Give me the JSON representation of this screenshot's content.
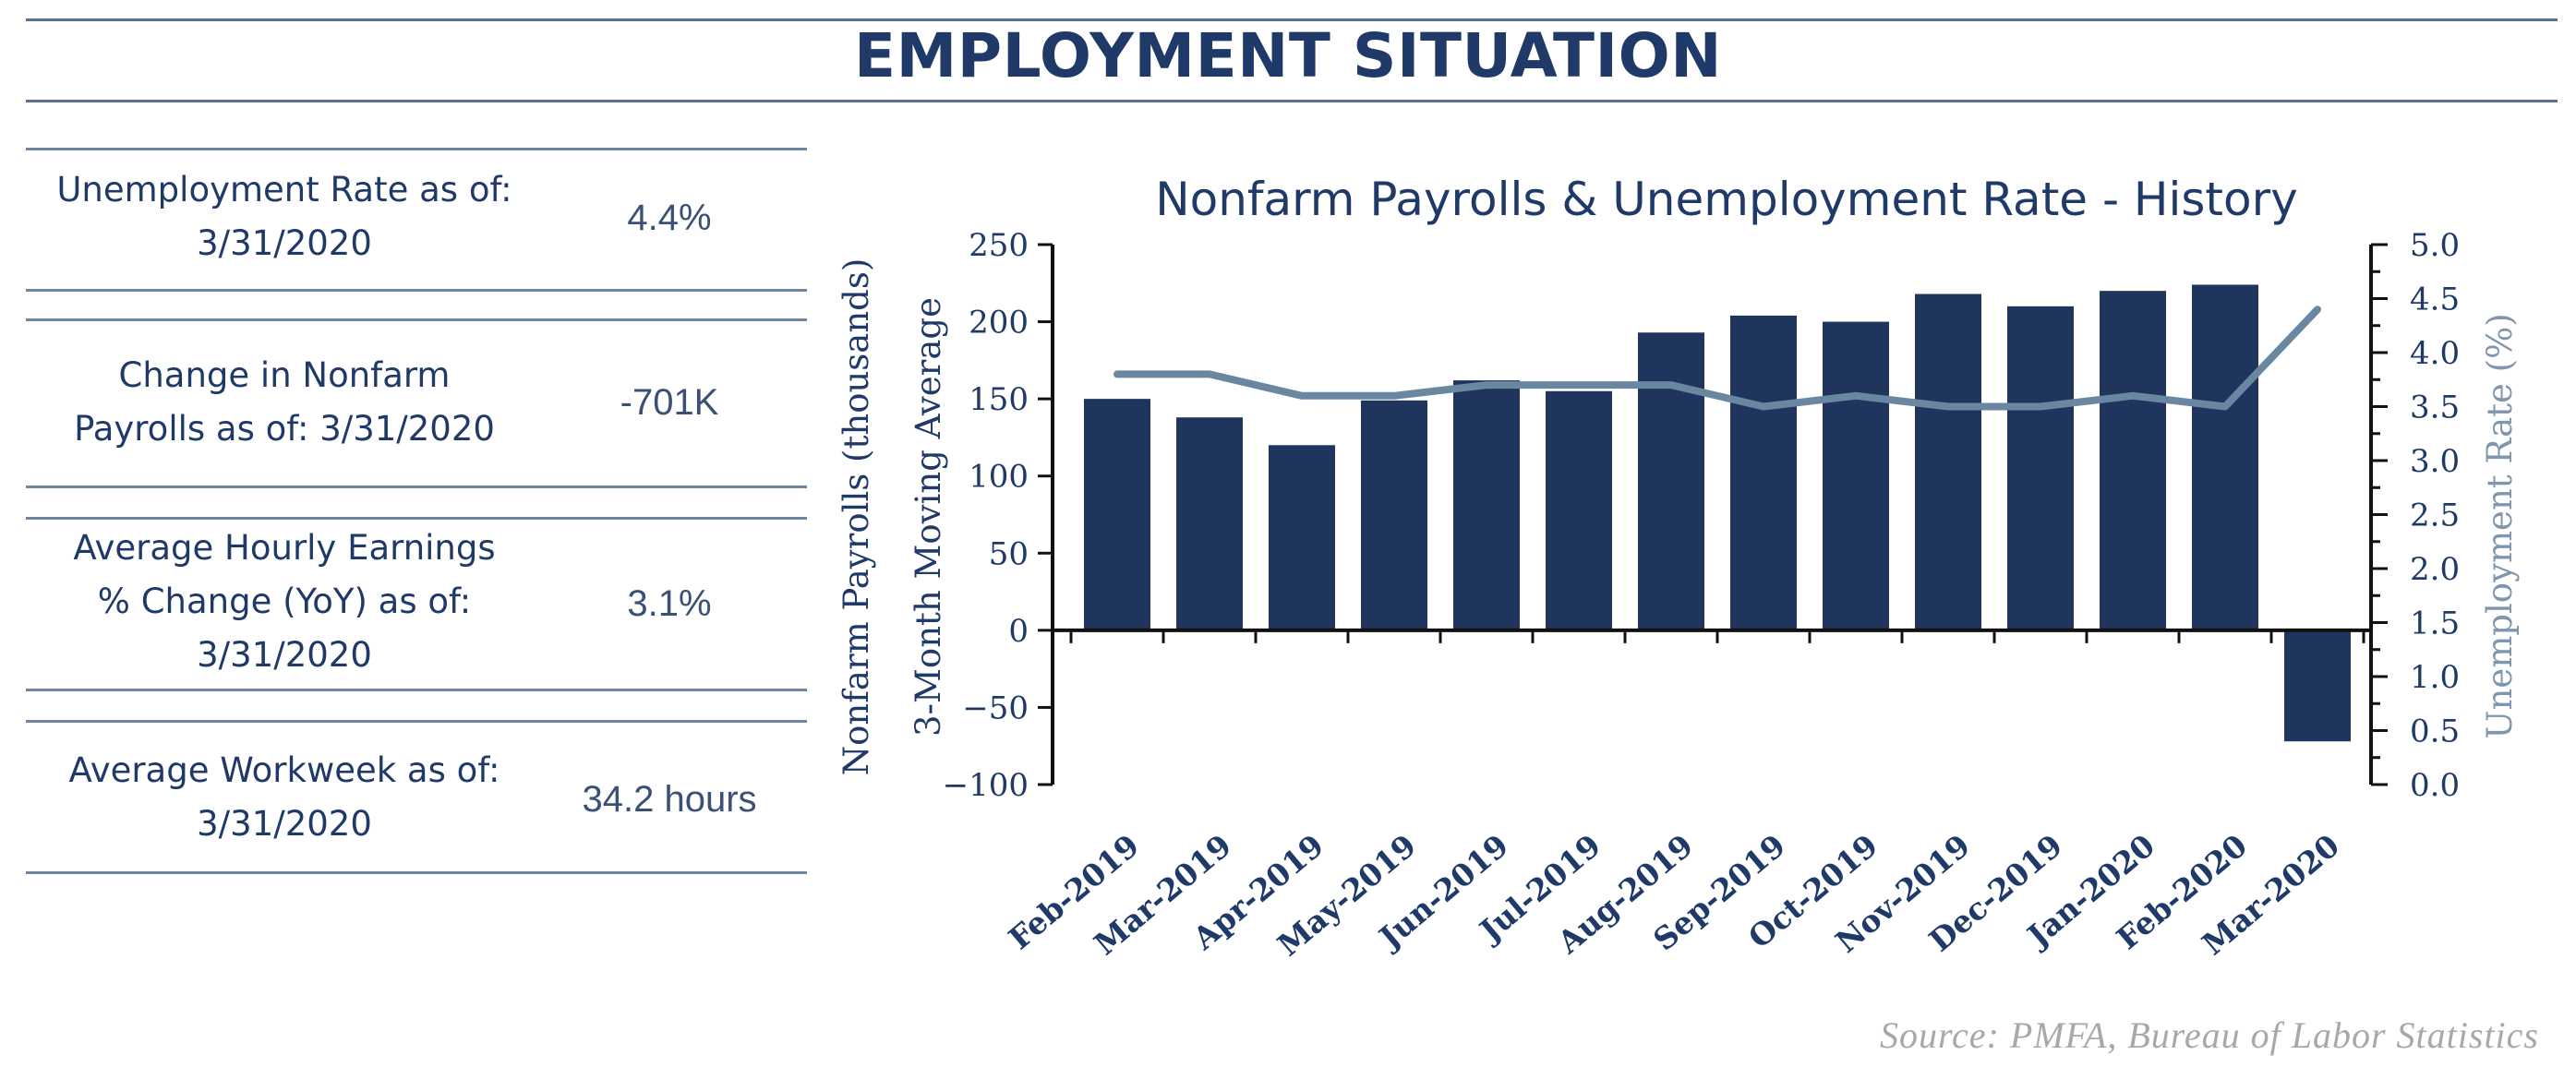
{
  "page": {
    "title": "EMPLOYMENT SITUATION",
    "source": "Source:  PMFA,  Bureau of Labor Statistics"
  },
  "stats": [
    {
      "label_lines": [
        "Unemployment Rate as of:",
        "3/31/2020"
      ],
      "value": "4.4%"
    },
    {
      "label_lines": [
        "Change in Nonfarm",
        "Payrolls as of: 3/31/2020"
      ],
      "value": "-701K"
    },
    {
      "label_lines": [
        "Average Hourly Earnings",
        "% Change (YoY) as of:",
        "3/31/2020"
      ],
      "value": "3.1%"
    },
    {
      "label_lines": [
        "Average Workweek as of:",
        "3/31/2020"
      ],
      "value": "34.2 hours"
    }
  ],
  "colors": {
    "navy": "#1f3a68",
    "bar": "#1f355e",
    "line": "#6a87a2",
    "source": "#a8a8a8"
  },
  "chart_data": {
    "type": "bar",
    "title": "Nonfarm Payrolls & Unemployment Rate - History",
    "categories": [
      "Feb-2019",
      "Mar-2019",
      "Apr-2019",
      "May-2019",
      "Jun-2019",
      "Jul-2019",
      "Aug-2019",
      "Sep-2019",
      "Oct-2019",
      "Nov-2019",
      "Dec-2019",
      "Jan-2020",
      "Feb-2020",
      "Mar-2020"
    ],
    "ylabel_left": [
      "Nonfarm Payrolls (thousands)",
      "3-Month Moving Average"
    ],
    "ylabel_right": "Unemployment  Rate (%)",
    "ylim_left": [
      -100,
      250
    ],
    "ylim_right": [
      0.0,
      5.0
    ],
    "yticks_left": [
      "250",
      "200",
      "150",
      "100",
      "50",
      "0",
      "−50",
      "−100"
    ],
    "yticks_right": [
      "5.0",
      "4.5",
      "4.0",
      "3.5",
      "3.0",
      "2.5",
      "2.0",
      "1.5",
      "1.0",
      "0.5",
      "0.0"
    ],
    "series": [
      {
        "type": "bar",
        "axis": "left",
        "values": [
          150,
          138,
          120,
          149,
          162,
          155,
          193,
          204,
          200,
          218,
          210,
          220,
          224,
          -72
        ]
      },
      {
        "type": "line",
        "axis": "right",
        "values": [
          3.8,
          3.8,
          3.6,
          3.6,
          3.7,
          3.7,
          3.7,
          3.5,
          3.6,
          3.5,
          3.5,
          3.6,
          3.5,
          4.4
        ]
      }
    ],
    "grid": false
  }
}
